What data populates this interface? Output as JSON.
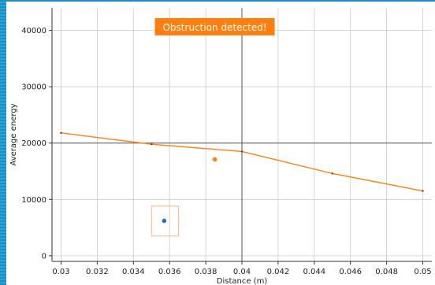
{
  "banner": {
    "text": "Obstruction detected!"
  },
  "colors": {
    "series": "#ff7f0e",
    "banner_bg": "#ff7f0e",
    "marker_blue": "#1f77b4",
    "marker_orange": "#ff7f0e",
    "grid": "#cccccc",
    "highlight_grid": "#555555",
    "frame": "#1a8fc2"
  },
  "chart_data": {
    "type": "line",
    "title": "",
    "xlabel": "Distance (m)",
    "ylabel": "Average energy",
    "xlim": [
      0.0295,
      0.0505
    ],
    "ylim": [
      -1000,
      44000
    ],
    "x_ticks": [
      0.03,
      0.032,
      0.034,
      0.036,
      0.038,
      0.04,
      0.042,
      0.044,
      0.046,
      0.048,
      0.05
    ],
    "x_tick_labels": [
      "0.03",
      "0.032",
      "0.034",
      "0.036",
      "0.038",
      "0.04",
      "0.042",
      "0.044",
      "0.046",
      "0.048",
      "0.05"
    ],
    "y_ticks": [
      0,
      10000,
      20000,
      30000,
      40000
    ],
    "y_tick_labels": [
      "0",
      "10000",
      "20000",
      "30000",
      "40000"
    ],
    "grid": true,
    "highlight_crosshair": {
      "x": 0.04,
      "y": 20000
    },
    "series": [
      {
        "values_x": [
          0.03,
          0.035,
          0.04,
          0.045,
          0.05
        ],
        "values_y": [
          21800,
          19800,
          18500,
          14600,
          11500
        ]
      }
    ],
    "points": [
      {
        "x": 0.0385,
        "y": 17100,
        "color": "#ff7f0e"
      },
      {
        "x": 0.0357,
        "y": 6200,
        "color": "#1f77b4",
        "boxed": true,
        "box_x": [
          0.035,
          0.0365
        ],
        "box_y": [
          3500,
          8800
        ]
      }
    ]
  }
}
